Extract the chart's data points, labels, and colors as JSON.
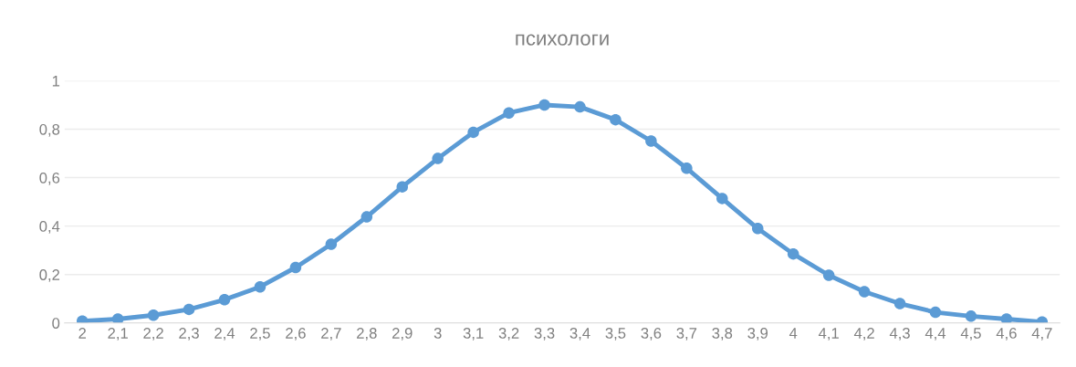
{
  "chart_data": {
    "type": "line",
    "title": "психологи",
    "categories": [
      "2",
      "2,1",
      "2,2",
      "2,3",
      "2,4",
      "2,5",
      "2,6",
      "2,7",
      "2,8",
      "2,9",
      "3",
      "3,1",
      "3,2",
      "3,3",
      "3,4",
      "3,5",
      "3,6",
      "3,7",
      "3,8",
      "3,9",
      "4",
      "4,1",
      "4,2",
      "4,3",
      "4,4",
      "4,5",
      "4,6",
      "4,7"
    ],
    "series": [
      {
        "color": "#5b9bd5",
        "values": [
          0.008,
          0.016,
          0.032,
          0.056,
          0.096,
          0.149,
          0.229,
          0.325,
          0.438,
          0.562,
          0.679,
          0.787,
          0.867,
          0.9,
          0.892,
          0.839,
          0.751,
          0.639,
          0.514,
          0.39,
          0.285,
          0.197,
          0.129,
          0.08,
          0.044,
          0.028,
          0.016,
          0.004
        ]
      }
    ],
    "ylim": [
      0,
      1
    ],
    "yticks": [
      0,
      {
        "value": 0.2,
        "label": "0,2"
      },
      {
        "value": 0.4,
        "label": "0,4"
      },
      {
        "value": 0.6,
        "label": "0,6"
      },
      {
        "value": 0.8,
        "label": "0,8"
      },
      1
    ],
    "grid": "y",
    "marker": "circle",
    "line_style": "solid"
  }
}
